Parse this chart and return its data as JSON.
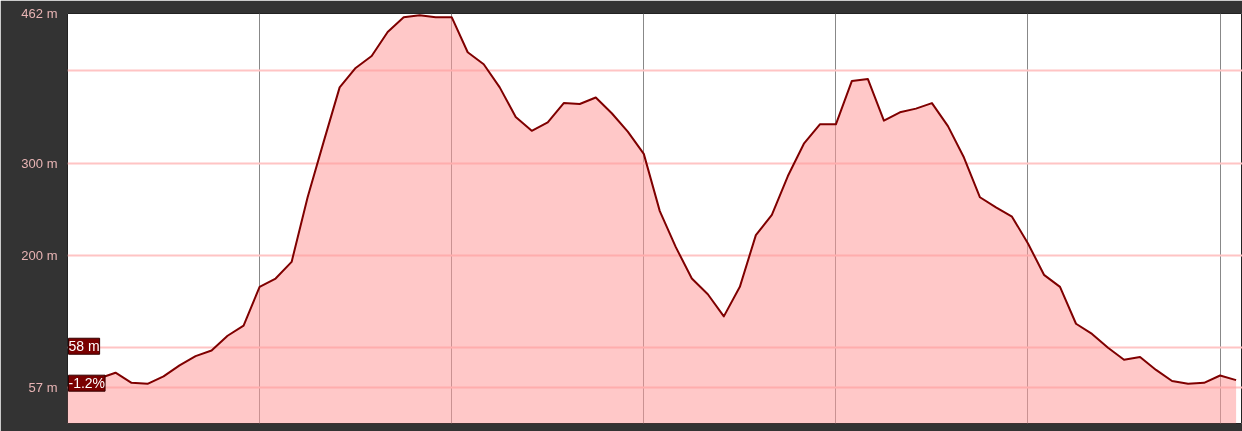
{
  "chart_data": {
    "type": "area",
    "categories": [
      null,
      null,
      null,
      null,
      null,
      null,
      null,
      null,
      null,
      null,
      null,
      null,
      null,
      null,
      null,
      null,
      null,
      null,
      null,
      null,
      null,
      null,
      null,
      null,
      null,
      null,
      null,
      null,
      null,
      null,
      null,
      null,
      null,
      null,
      null,
      null,
      null,
      null,
      null,
      null,
      null,
      null,
      null,
      null,
      null,
      null,
      null,
      null,
      null,
      null,
      null,
      null,
      null,
      null,
      null,
      null,
      null,
      null,
      null,
      null,
      null,
      null,
      null,
      null,
      null,
      null,
      null,
      null,
      null,
      null,
      null,
      null,
      null,
      null
    ],
    "series": [
      {
        "color": "#7f0000",
        "values": [
          58,
          60,
          67,
          73,
          62,
          61,
          69,
          81,
          91,
          97,
          113,
          124,
          166,
          175,
          193,
          263,
          323,
          382,
          403,
          416,
          442,
          458,
          460,
          458,
          458,
          420,
          407,
          382,
          350,
          335,
          344,
          365,
          364,
          371,
          354,
          334,
          310,
          248,
          209,
          175,
          158,
          134,
          166,
          222,
          244,
          286,
          321,
          342,
          342,
          389,
          391,
          346,
          355,
          359,
          365,
          340,
          306,
          263,
          252,
          242,
          213,
          179,
          166,
          126,
          115,
          100,
          87,
          90,
          76,
          64,
          61,
          62,
          70,
          65
        ]
      }
    ],
    "ylim": [
      18,
      462
    ],
    "yticks": [
      {
        "value": 462,
        "label": "462 m"
      },
      {
        "value": 400,
        "label": null
      },
      {
        "value": 300,
        "label": "300 m"
      },
      {
        "value": 200,
        "label": "200 m"
      },
      {
        "value": 100,
        "label": null
      },
      {
        "value": 57,
        "label": "57 m"
      }
    ],
    "tick_labels": "y",
    "grid": true,
    "annotations": [
      "58 m",
      "-1.2%"
    ]
  }
}
